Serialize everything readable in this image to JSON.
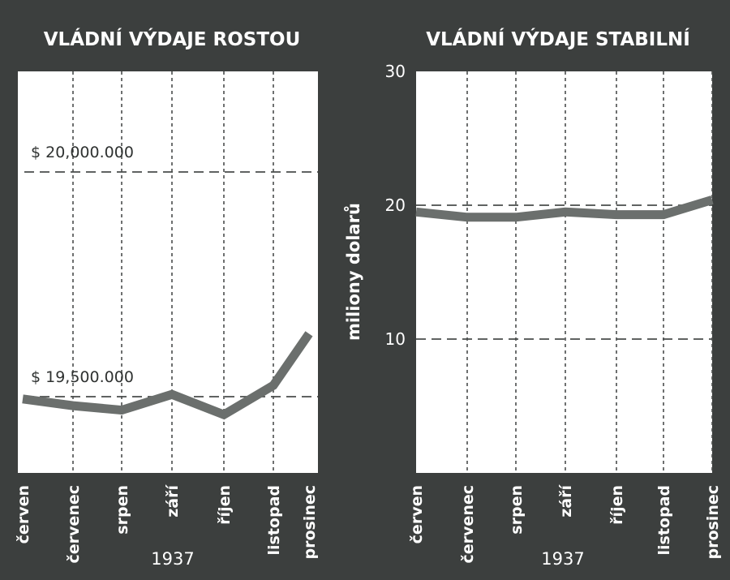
{
  "chart_data": [
    {
      "type": "line",
      "title": "VLÁDNÍ VÝDAJE ROSTOU",
      "categories": [
        "červen",
        "červenec",
        "srpen",
        "září",
        "říjen",
        "listopad",
        "prosinec"
      ],
      "xlabel": "1937",
      "ylabel": "",
      "series": [
        {
          "values": [
            19495000,
            19480000,
            19470000,
            19505000,
            19460000,
            19525000,
            19640000
          ]
        }
      ],
      "reference_lines": [
        {
          "value": 20000000,
          "label": "$ 20,000.000"
        },
        {
          "value": 19500000,
          "label": "$ 19,500.000"
        }
      ],
      "color": "#6b6f6d",
      "grid": true
    },
    {
      "type": "line",
      "title": "VLÁDNÍ VÝDAJE STABILNÍ",
      "categories": [
        "červen",
        "červenec",
        "srpen",
        "září",
        "říjen",
        "listopad",
        "prosinec"
      ],
      "xlabel": "1937",
      "ylabel": "miliony dolarů",
      "ylim": [
        0,
        30
      ],
      "yticks": [
        10,
        20,
        30
      ],
      "series": [
        {
          "values": [
            19.5,
            19.1,
            19.1,
            19.5,
            19.3,
            19.3,
            20.4
          ]
        }
      ],
      "color": "#6b6f6d",
      "grid": true
    }
  ]
}
